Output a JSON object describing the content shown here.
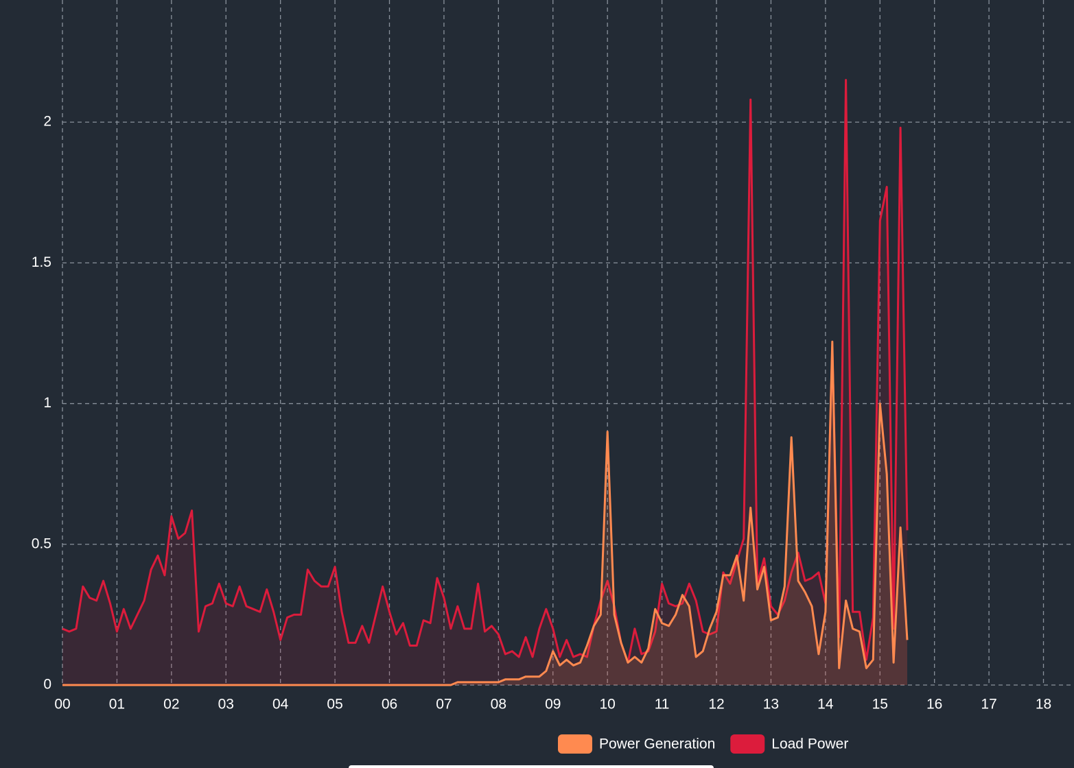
{
  "chart_data": {
    "type": "line",
    "x": [
      0,
      0.125,
      0.25,
      0.375,
      0.5,
      0.625,
      0.75,
      0.875,
      1,
      1.125,
      1.25,
      1.375,
      1.5,
      1.625,
      1.75,
      1.875,
      2,
      2.125,
      2.25,
      2.375,
      2.5,
      2.625,
      2.75,
      2.875,
      3,
      3.125,
      3.25,
      3.375,
      3.5,
      3.625,
      3.75,
      3.875,
      4,
      4.125,
      4.25,
      4.375,
      4.5,
      4.625,
      4.75,
      4.875,
      5,
      5.125,
      5.25,
      5.375,
      5.5,
      5.625,
      5.75,
      5.875,
      6,
      6.125,
      6.25,
      6.375,
      6.5,
      6.625,
      6.75,
      6.875,
      7,
      7.125,
      7.25,
      7.375,
      7.5,
      7.625,
      7.75,
      7.875,
      8,
      8.125,
      8.25,
      8.375,
      8.5,
      8.625,
      8.75,
      8.875,
      9,
      9.125,
      9.25,
      9.375,
      9.5,
      9.625,
      9.75,
      9.875,
      10,
      10.125,
      10.25,
      10.375,
      10.5,
      10.625,
      10.75,
      10.875,
      11,
      11.125,
      11.25,
      11.375,
      11.5,
      11.625,
      11.75,
      11.875,
      12,
      12.125,
      12.25,
      12.375,
      12.5,
      12.625,
      12.75,
      12.875,
      13,
      13.125,
      13.25,
      13.375,
      13.5,
      13.625,
      13.75,
      13.875,
      14,
      14.125,
      14.25,
      14.375,
      14.5,
      14.625,
      14.75,
      14.875,
      15,
      15.125,
      15.25,
      15.375,
      15.5
    ],
    "series": [
      {
        "name": "Power Generation",
        "color": "#ff8a50",
        "values": [
          0,
          0,
          0,
          0,
          0,
          0,
          0,
          0,
          0,
          0,
          0,
          0,
          0,
          0,
          0,
          0,
          0,
          0,
          0,
          0,
          0,
          0,
          0,
          0,
          0,
          0,
          0,
          0,
          0,
          0,
          0,
          0,
          0,
          0,
          0,
          0,
          0,
          0,
          0,
          0,
          0,
          0,
          0,
          0,
          0,
          0,
          0,
          0,
          0,
          0,
          0,
          0,
          0,
          0,
          0,
          0,
          0,
          0,
          0.01,
          0.01,
          0.01,
          0.01,
          0.01,
          0.01,
          0.01,
          0.02,
          0.02,
          0.02,
          0.03,
          0.03,
          0.03,
          0.05,
          0.12,
          0.07,
          0.09,
          0.07,
          0.08,
          0.14,
          0.21,
          0.25,
          0.9,
          0.25,
          0.15,
          0.08,
          0.1,
          0.08,
          0.13,
          0.27,
          0.22,
          0.21,
          0.25,
          0.32,
          0.28,
          0.1,
          0.12,
          0.2,
          0.26,
          0.39,
          0.39,
          0.46,
          0.3,
          0.63,
          0.34,
          0.42,
          0.23,
          0.24,
          0.35,
          0.88,
          0.37,
          0.33,
          0.28,
          0.11,
          0.26,
          1.22,
          0.06,
          0.3,
          0.2,
          0.19,
          0.06,
          0.09,
          1.0,
          0.75,
          0.08,
          0.56,
          0.16
        ]
      },
      {
        "name": "Load Power",
        "color": "#dc1c3c",
        "values": [
          0.2,
          0.19,
          0.2,
          0.35,
          0.31,
          0.3,
          0.37,
          0.29,
          0.19,
          0.27,
          0.2,
          0.25,
          0.3,
          0.41,
          0.46,
          0.39,
          0.6,
          0.52,
          0.54,
          0.62,
          0.19,
          0.28,
          0.29,
          0.36,
          0.29,
          0.28,
          0.35,
          0.28,
          0.27,
          0.26,
          0.34,
          0.26,
          0.16,
          0.24,
          0.25,
          0.25,
          0.41,
          0.37,
          0.35,
          0.35,
          0.42,
          0.26,
          0.15,
          0.15,
          0.21,
          0.15,
          0.25,
          0.35,
          0.26,
          0.18,
          0.22,
          0.14,
          0.14,
          0.23,
          0.22,
          0.38,
          0.31,
          0.2,
          0.28,
          0.2,
          0.2,
          0.36,
          0.19,
          0.21,
          0.18,
          0.11,
          0.12,
          0.1,
          0.17,
          0.1,
          0.2,
          0.27,
          0.2,
          0.1,
          0.16,
          0.1,
          0.11,
          0.1,
          0.21,
          0.3,
          0.37,
          0.28,
          0.15,
          0.08,
          0.2,
          0.11,
          0.12,
          0.19,
          0.36,
          0.29,
          0.28,
          0.29,
          0.36,
          0.3,
          0.19,
          0.18,
          0.19,
          0.4,
          0.36,
          0.44,
          0.52,
          2.08,
          0.36,
          0.45,
          0.28,
          0.25,
          0.3,
          0.4,
          0.47,
          0.37,
          0.38,
          0.4,
          0.29,
          1.2,
          0.17,
          2.15,
          0.26,
          0.26,
          0.09,
          0.24,
          1.65,
          1.77,
          0.2,
          1.98,
          0.55
        ]
      }
    ],
    "xlim": [
      0,
      18.56
    ],
    "xticks": [
      {
        "value": 0,
        "label": "00"
      },
      {
        "value": 1,
        "label": "01"
      },
      {
        "value": 2,
        "label": "02"
      },
      {
        "value": 3,
        "label": "03"
      },
      {
        "value": 4,
        "label": "04"
      },
      {
        "value": 5,
        "label": "05"
      },
      {
        "value": 6,
        "label": "06"
      },
      {
        "value": 7,
        "label": "07"
      },
      {
        "value": 8,
        "label": "08"
      },
      {
        "value": 9,
        "label": "09"
      },
      {
        "value": 10,
        "label": "10"
      },
      {
        "value": 11,
        "label": "11"
      },
      {
        "value": 12,
        "label": "12"
      },
      {
        "value": 13,
        "label": "13"
      },
      {
        "value": 14,
        "label": "14"
      },
      {
        "value": 15,
        "label": "15"
      },
      {
        "value": 16,
        "label": "16"
      },
      {
        "value": 17,
        "label": "17"
      },
      {
        "value": 18,
        "label": "18"
      }
    ],
    "ylim": [
      0,
      2.434
    ],
    "yticks": [
      0,
      0.5,
      1,
      1.5,
      2
    ],
    "grid": true,
    "legend": "bottom"
  }
}
